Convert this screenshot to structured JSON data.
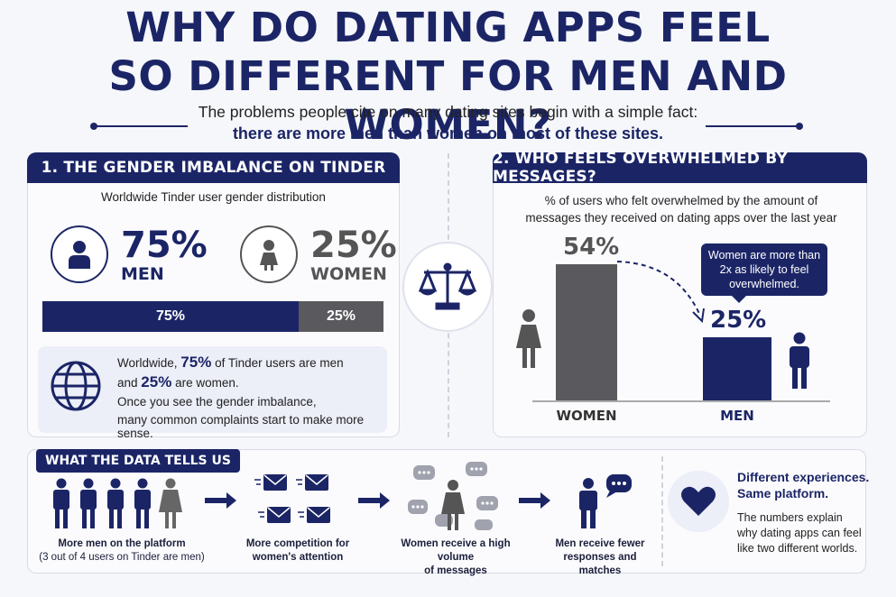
{
  "title": {
    "line1": "WHY DO DATING APPS FEEL",
    "line2": "SO DIFFERENT FOR MEN AND WOMEN?"
  },
  "subtitle": {
    "line1": "The problems people cite on many dating sites begin with a simple fact:",
    "line2": "there are more men than women on most of these sites."
  },
  "section1": {
    "header": "1. THE GENDER IMBALANCE ON TINDER",
    "caption": "Worldwide Tinder user gender distribution",
    "men_pct": "75%",
    "men_label": "MEN",
    "women_pct": "25%",
    "women_label": "WOMEN",
    "bar": {
      "men_share": 0.75,
      "men_text": "75%",
      "women_text": "25%"
    },
    "info": {
      "l1_pre": "Worldwide, ",
      "l1_bold": "75%",
      "l1_post": " of Tinder users are men",
      "l2_pre": "and ",
      "l2_bold": "25%",
      "l2_post": " are women.",
      "l3": "Once you see the gender imbalance,",
      "l4": "many common complaints start to make more sense."
    }
  },
  "section2": {
    "header": "2. WHO FEELS OVERWHELMED BY MESSAGES?",
    "caption_l1": "% of users who felt overwhelmed by the amount of",
    "caption_l2": "messages they received on dating apps over the last year",
    "callout_l1": "Women are more than",
    "callout_l2": "2x as likely to feel",
    "callout_l3": "overwhelmed."
  },
  "chart_data": {
    "type": "bar",
    "categories": [
      "WOMEN",
      "MEN"
    ],
    "values": [
      54,
      25
    ],
    "labels": [
      "54%",
      "25%"
    ],
    "ylim": [
      0,
      60
    ],
    "colors": [
      "#5a5a5e",
      "#1b2566"
    ]
  },
  "section3": {
    "header": "WHAT THE DATA TELLS US",
    "step1_l1": "More men on the platform",
    "step1_l2": "(3 out of 4 users on Tinder are men)",
    "step2_l1": "More competition for",
    "step2_l2": "women's attention",
    "step3_l1": "Women receive a high volume",
    "step3_l2": "of messages",
    "step4_l1": "Men receive fewer",
    "step4_l2": "responses and matches",
    "end_h1": "Different experiences.",
    "end_h2": "Same platform.",
    "end_t1": "The numbers explain",
    "end_t2": "why dating apps can feel",
    "end_t3": "like two different worlds."
  },
  "colors": {
    "navy": "#1b2566",
    "grey": "#5a5a5e"
  }
}
